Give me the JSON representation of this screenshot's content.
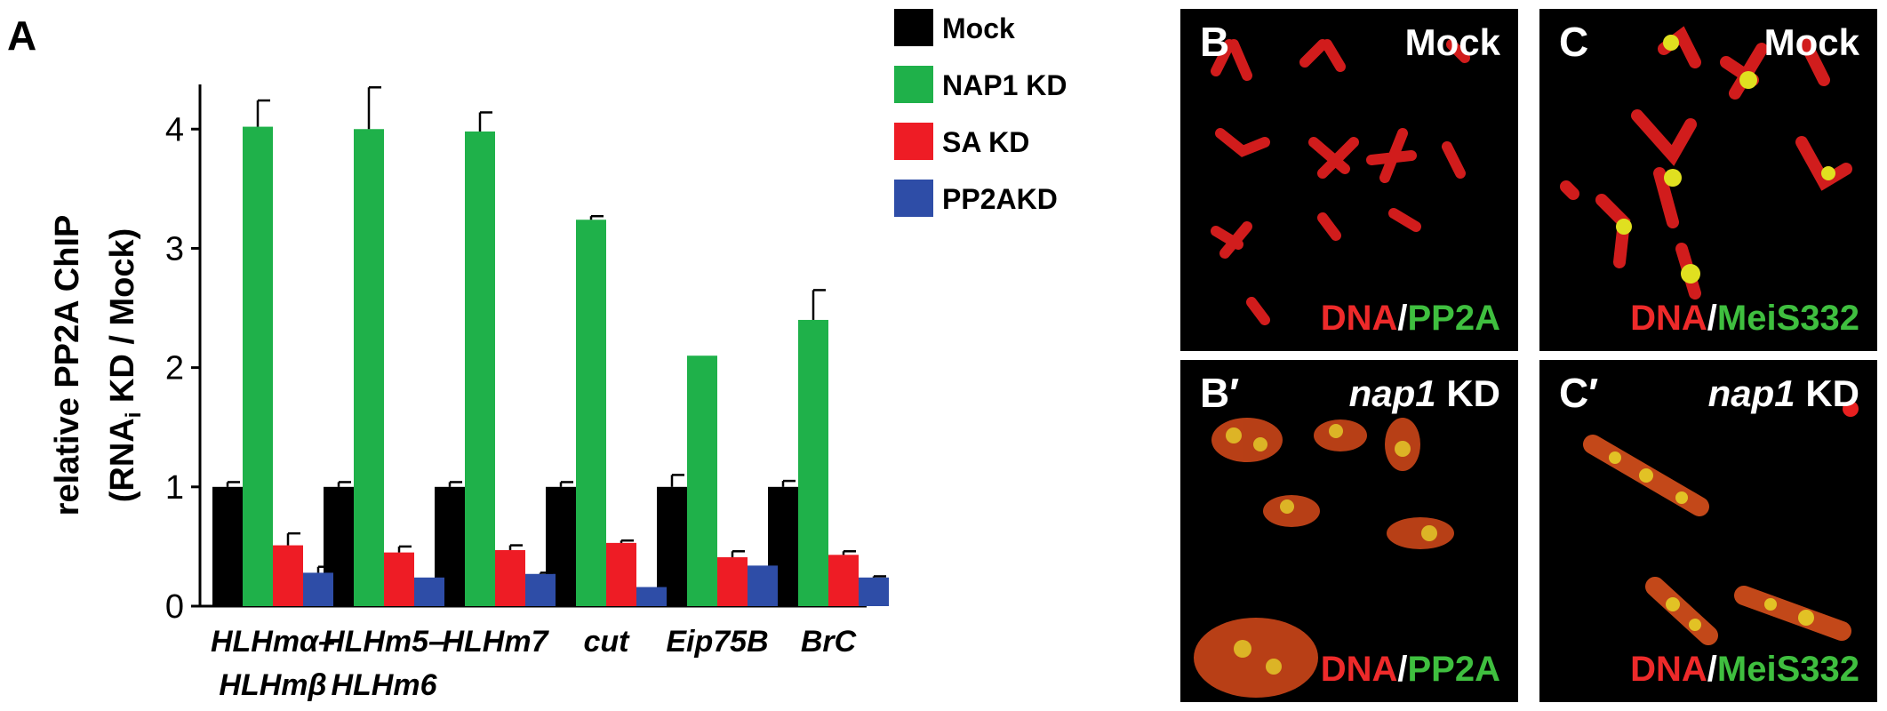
{
  "panel_a_label": "A",
  "chart_data": {
    "type": "bar",
    "ylabel_line1": "relative PP2A ChIP",
    "ylabel_line2_prefix": "(RNA",
    "ylabel_line2_sub": "i",
    "ylabel_line2_suffix": " KD / Mock)",
    "ylim": [
      0,
      4.3
    ],
    "yticks": [
      0,
      1,
      2,
      3,
      4
    ],
    "legend_position": "top-right",
    "categories": [
      {
        "line1": "HLHmα–",
        "line2": "HLHmβ"
      },
      {
        "line1": "HLHm5–",
        "line2": "HLHm6"
      },
      {
        "line1": "HLHm7",
        "line2": ""
      },
      {
        "line1": "cut",
        "line2": ""
      },
      {
        "line1": "Eip75B",
        "line2": ""
      },
      {
        "line1": "BrC",
        "line2": ""
      }
    ],
    "series": [
      {
        "name": "Mock",
        "color": "#000000",
        "values": [
          1.0,
          1.0,
          1.0,
          1.0,
          1.0,
          1.0
        ],
        "errors": [
          0.04,
          0.04,
          0.04,
          0.04,
          0.1,
          0.05
        ]
      },
      {
        "name": "NAP1 KD",
        "color": "#1fb14a",
        "values": [
          4.02,
          4.0,
          3.98,
          3.24,
          2.1,
          2.4
        ],
        "errors": [
          0.22,
          0.35,
          0.16,
          0.03,
          0.0,
          0.25
        ]
      },
      {
        "name": "SA KD",
        "color": "#ee1c25",
        "values": [
          0.51,
          0.45,
          0.47,
          0.53,
          0.41,
          0.43
        ],
        "errors": [
          0.1,
          0.05,
          0.04,
          0.02,
          0.05,
          0.03
        ]
      },
      {
        "name": "PP2AKD",
        "color": "#2e4da7",
        "values": [
          0.28,
          0.24,
          0.27,
          0.16,
          0.34,
          0.24
        ],
        "errors": [
          0.05,
          0.0,
          0.01,
          0.0,
          0.0,
          0.01
        ]
      }
    ]
  },
  "panels": {
    "b": {
      "label": "B",
      "condition": "Mock",
      "stain": "PP2A"
    },
    "c": {
      "label": "C",
      "condition": "Mock",
      "stain": "MeiS332"
    },
    "b_prime": {
      "label": "B′",
      "condition_italic": "nap1",
      "condition_rest": " KD",
      "stain": "PP2A"
    },
    "c_prime": {
      "label": "C′",
      "condition_italic": "nap1",
      "condition_rest": " KD",
      "stain": "MeiS332"
    },
    "dna_label": "DNA",
    "slash": "/"
  }
}
